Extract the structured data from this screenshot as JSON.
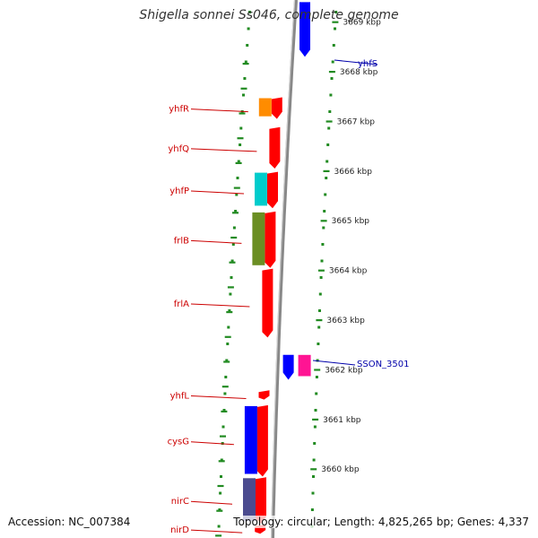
{
  "title": "Shigella sonnei Ss046, complete genome",
  "footer": {
    "accession_label": "Accession:",
    "accession": "NC_007384",
    "topology_label": "Topology:",
    "topology": "circular;",
    "length_label": "Length:",
    "length": "4,825,265 bp;",
    "genes_label": "Genes:",
    "genes": "4,337"
  },
  "colors": {
    "forward_gene": "#ff0000",
    "reverse_gene": "#0000ff",
    "forward_label": "#cc0000",
    "reverse_label": "#0000aa",
    "tick": "#228b22",
    "backbone": "#888888"
  },
  "scale": {
    "unit": "kbp",
    "ticks": [
      3669,
      3668,
      3667,
      3666,
      3665,
      3664,
      3663,
      3662,
      3661,
      3660
    ]
  },
  "forward_genes": [
    {
      "name": "yhfR",
      "start_kbp": 3667.45,
      "end_kbp": 3667.05,
      "cog_color": "#ff8c00"
    },
    {
      "name": "yhfQ",
      "start_kbp": 3666.85,
      "end_kbp": 3666.05,
      "cog_color": null
    },
    {
      "name": "yhfP",
      "start_kbp": 3665.95,
      "end_kbp": 3665.25,
      "cog_color": "#00cccc"
    },
    {
      "name": "frlB",
      "start_kbp": 3665.15,
      "end_kbp": 3664.05,
      "cog_color": "#6b8e23"
    },
    {
      "name": "frlA",
      "start_kbp": 3664.0,
      "end_kbp": 3662.65,
      "cog_color": null
    },
    {
      "name": "yhfL",
      "start_kbp": 3661.55,
      "end_kbp": 3661.4,
      "cog_color": null
    },
    {
      "name": "cysG",
      "start_kbp": 3661.25,
      "end_kbp": 3659.85,
      "cog_color": "#0000ff"
    },
    {
      "name": "nirC",
      "start_kbp": 3659.8,
      "end_kbp": 3658.9,
      "cog_color": "#4b4b8f"
    },
    {
      "name": "nirD",
      "start_kbp": 3658.85,
      "end_kbp": 3658.7,
      "cog_color": null
    }
  ],
  "reverse_genes": [
    {
      "name": "yhfS",
      "start_kbp": 3668.3,
      "end_kbp": 3669.4,
      "cog_color": null
    },
    {
      "name": "SSON_3501",
      "start_kbp": 3661.8,
      "end_kbp": 3662.3,
      "cog_color": "#ff1493"
    }
  ]
}
